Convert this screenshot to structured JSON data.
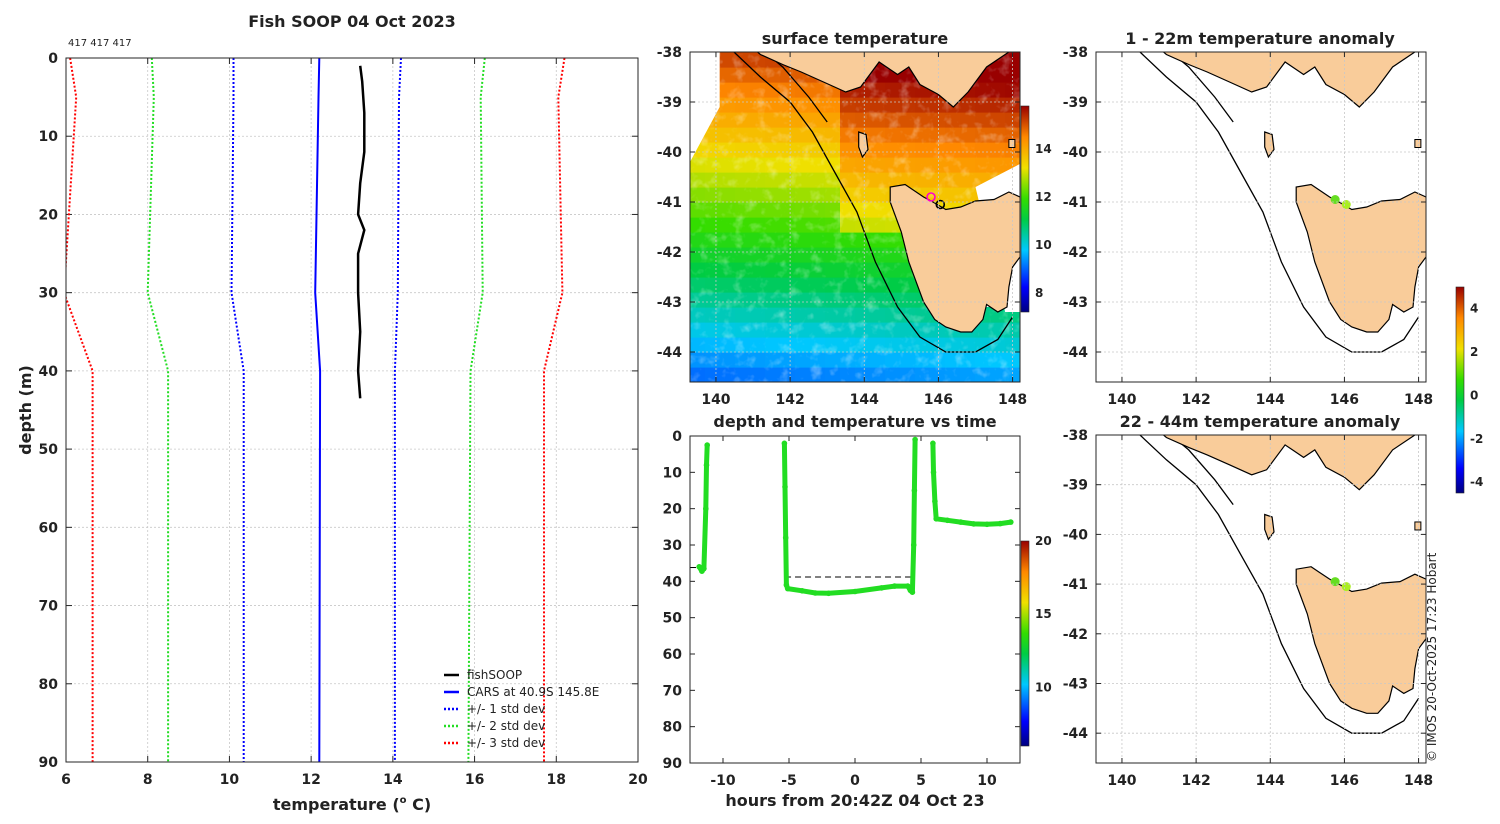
{
  "colors": {
    "land": "#f9cc9a",
    "coast": "#000000",
    "grid": "#c8c8c8",
    "axis": "#262626",
    "text": "#222222",
    "black": "#000000",
    "blue": "#0000ff",
    "green": "#22dd22",
    "red": "#ff0000",
    "point": "#22dd22"
  },
  "chart_data": [
    {
      "id": "profile",
      "type": "line",
      "title": "Fish SOOP 04 Oct 2023",
      "annotation": "417 417 417",
      "xlabel": "temperature (",
      "xlabel_sup": "o",
      "xlabel_tail": " C)",
      "ylabel": "depth (m)",
      "xlim": [
        6,
        20
      ],
      "ylim": [
        90,
        0
      ],
      "xticks": [
        "6",
        "8",
        "10",
        "12",
        "14",
        "16",
        "18",
        "20"
      ],
      "yticks": [
        "0",
        "10",
        "20",
        "30",
        "40",
        "50",
        "60",
        "70",
        "80",
        "90"
      ],
      "legend_position": "bottom-right",
      "depth_levels": [
        0,
        5,
        30,
        40,
        90
      ],
      "series": [
        {
          "name": "fishSOOP",
          "style": "solid",
          "color": "black",
          "points": [
            [
              13.2,
              1
            ],
            [
              13.25,
              3
            ],
            [
              13.3,
              7
            ],
            [
              13.3,
              12
            ],
            [
              13.2,
              16
            ],
            [
              13.15,
              20
            ],
            [
              13.3,
              22
            ],
            [
              13.15,
              25
            ],
            [
              13.15,
              30
            ],
            [
              13.2,
              35
            ],
            [
              13.15,
              40
            ],
            [
              13.2,
              43.5
            ]
          ]
        },
        {
          "name": "CARS at 40.9S 145.8E",
          "style": "solid",
          "color": "blue",
          "values": [
            12.2,
            12.18,
            12.1,
            12.22,
            12.2
          ]
        },
        {
          "name": "+/- 1 std dev",
          "style": "dotted",
          "color": "blue",
          "values_low": [
            10.1,
            10.1,
            10.05,
            10.35,
            10.35
          ],
          "values_high": [
            14.2,
            14.15,
            14.12,
            14.05,
            14.05
          ]
        },
        {
          "name": "+/- 2 std dev",
          "style": "dotted",
          "color": "green",
          "values_low": [
            8.1,
            8.15,
            8.0,
            8.5,
            8.5
          ],
          "values_high": [
            16.25,
            16.15,
            16.2,
            15.9,
            15.85
          ]
        },
        {
          "name": "+/- 3 std dev",
          "style": "dotted",
          "color": "red",
          "values_low": [
            6.1,
            6.25,
            5.95,
            6.65,
            6.65
          ],
          "values_high": [
            18.2,
            18.05,
            18.15,
            17.7,
            17.7
          ]
        }
      ]
    },
    {
      "id": "sst",
      "type": "heatmap",
      "title": "surface temperature",
      "xlim": [
        139.3,
        148.2
      ],
      "ylim": [
        -44.6,
        -38
      ],
      "xticks": [
        "140",
        "142",
        "144",
        "146",
        "148"
      ],
      "yticks": [
        "-38",
        "-39",
        "-40",
        "-41",
        "-42",
        "-43",
        "-44"
      ],
      "colorbar": {
        "ticks": [
          "8",
          "10",
          "12",
          "14"
        ],
        "range": [
          7.2,
          15.8
        ]
      },
      "markers": [
        {
          "lon": 145.8,
          "lat": -40.9,
          "color": "#ff00cc"
        },
        {
          "lon": 146.05,
          "lat": -41.05,
          "color": "#000000"
        }
      ]
    },
    {
      "id": "depth_time",
      "type": "scatter",
      "title": "depth and temperature vs time",
      "xlabel": "hours from 20:42Z 04 Oct 23",
      "xlim": [
        -12.5,
        12.5
      ],
      "ylim": [
        90,
        0
      ],
      "xticks": [
        "-10",
        "-5",
        "0",
        "5",
        "10"
      ],
      "yticks": [
        "0",
        "10",
        "20",
        "30",
        "40",
        "50",
        "60",
        "70",
        "80",
        "90"
      ],
      "reference_depth": 38.8,
      "reference_range": [
        -5.3,
        4.3
      ],
      "colorbar": {
        "ticks": [
          "10",
          "15",
          "20"
        ],
        "range": [
          6,
          20
        ]
      },
      "segments": [
        {
          "temp": 13.2,
          "points": [
            [
              -11.8,
              36
            ],
            [
              -11.6,
              37.2
            ],
            [
              -11.45,
              36.5
            ],
            [
              -11.3,
              20
            ],
            [
              -11.25,
              8
            ],
            [
              -11.2,
              2.5
            ]
          ]
        },
        {
          "temp": 13.2,
          "points": [
            [
              -5.35,
              2
            ],
            [
              -5.3,
              14
            ],
            [
              -5.25,
              28
            ],
            [
              -5.2,
              41
            ],
            [
              -5.1,
              42
            ],
            [
              -4,
              42.6
            ],
            [
              -3,
              43.2
            ],
            [
              -2,
              43.3
            ],
            [
              0,
              42.8
            ],
            [
              2,
              41.8
            ],
            [
              3,
              41.3
            ],
            [
              4,
              41.3
            ],
            [
              4.2,
              42.5
            ],
            [
              4.35,
              43
            ],
            [
              4.45,
              30
            ],
            [
              4.5,
              15
            ],
            [
              4.55,
              1
            ]
          ]
        },
        {
          "temp": 13.2,
          "points": [
            [
              5.9,
              2
            ],
            [
              5.95,
              10
            ],
            [
              6.05,
              18
            ],
            [
              6.15,
              22.8
            ],
            [
              7,
              23.2
            ],
            [
              8,
              23.7
            ],
            [
              9,
              24.2
            ],
            [
              10,
              24.3
            ],
            [
              11,
              24.1
            ],
            [
              11.8,
              23.7
            ]
          ]
        }
      ]
    },
    {
      "id": "anom_shallow",
      "type": "scatter",
      "title": "1 - 22m temperature anomaly",
      "xlim": [
        139.3,
        148.2
      ],
      "ylim": [
        -44.6,
        -38
      ],
      "xticks": [
        "140",
        "142",
        "144",
        "146",
        "148"
      ],
      "yticks": [
        "-38",
        "-39",
        "-40",
        "-41",
        "-42",
        "-43",
        "-44"
      ],
      "points": [
        {
          "lon": 145.75,
          "lat": -40.95,
          "anomaly": 1.0
        },
        {
          "lon": 146.05,
          "lat": -41.05,
          "anomaly": 1.5
        }
      ],
      "colorbar": {
        "ticks": [
          "-4",
          "-2",
          "0",
          "2",
          "4"
        ],
        "range": [
          -4.5,
          5
        ]
      }
    },
    {
      "id": "anom_deep",
      "type": "scatter",
      "title": "22 - 44m temperature anomaly",
      "xlim": [
        139.3,
        148.2
      ],
      "ylim": [
        -44.6,
        -38
      ],
      "xticks": [
        "140",
        "142",
        "144",
        "146",
        "148"
      ],
      "yticks": [
        "-38",
        "-39",
        "-40",
        "-41",
        "-42",
        "-43",
        "-44"
      ],
      "points": [
        {
          "lon": 145.75,
          "lat": -40.95,
          "anomaly": 1.0
        },
        {
          "lon": 146.05,
          "lat": -41.05,
          "anomaly": 1.5
        }
      ]
    }
  ],
  "copyright": "© IMOS 20-Oct-2025 17:23 Hobart"
}
